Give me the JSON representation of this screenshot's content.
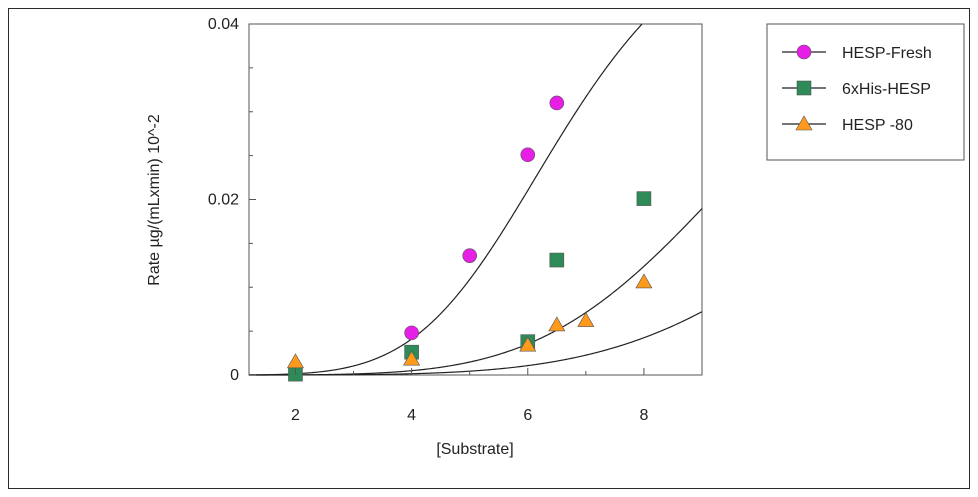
{
  "chart_data": {
    "type": "scatter",
    "title": "",
    "xlabel": "[Substrate]",
    "ylabel": "Rate µg/(mLxmin) 10^-2",
    "xlim": [
      1.2,
      9
    ],
    "ylim": [
      0,
      0.04
    ],
    "x_ticks": [
      "2",
      "4",
      "6",
      "8"
    ],
    "y_ticks": [
      "0",
      "0.02",
      "0.04"
    ],
    "grid": false,
    "legend_position": "top-right",
    "series": [
      {
        "name": "HESP-Fresh",
        "marker": "circle",
        "color": "#e61ee6",
        "points": [
          {
            "x": 4,
            "y": 0.0048
          },
          {
            "x": 5,
            "y": 0.0136
          },
          {
            "x": 6,
            "y": 0.0251
          },
          {
            "x": 6.5,
            "y": 0.031
          }
        ]
      },
      {
        "name": "6xHis-HESP",
        "marker": "square",
        "color": "#2e8b57",
        "points": [
          {
            "x": 2,
            "y": 0.0001
          },
          {
            "x": 4,
            "y": 0.0026
          },
          {
            "x": 6,
            "y": 0.0038
          },
          {
            "x": 6.5,
            "y": 0.0131
          },
          {
            "x": 8,
            "y": 0.0201
          }
        ]
      },
      {
        "name": "HESP -80",
        "marker": "triangle",
        "color": "#ff9a1a",
        "points": [
          {
            "x": 2,
            "y": 0.0015
          },
          {
            "x": 4,
            "y": 0.0018
          },
          {
            "x": 6,
            "y": 0.0034
          },
          {
            "x": 6.5,
            "y": 0.0057
          },
          {
            "x": 7,
            "y": 0.0062
          },
          {
            "x": 8,
            "y": 0.0106
          }
        ]
      }
    ],
    "fit_curves": [
      {
        "series": "HESP-Fresh",
        "vmax": 0.0562,
        "k": 6.65,
        "n": 5
      },
      {
        "series": "6xHis-HESP",
        "vmax": 0.0562,
        "k": 10.3,
        "n": 5
      },
      {
        "series": "HESP -80",
        "vmax": 0.0562,
        "k": 13.2,
        "n": 5
      }
    ]
  }
}
